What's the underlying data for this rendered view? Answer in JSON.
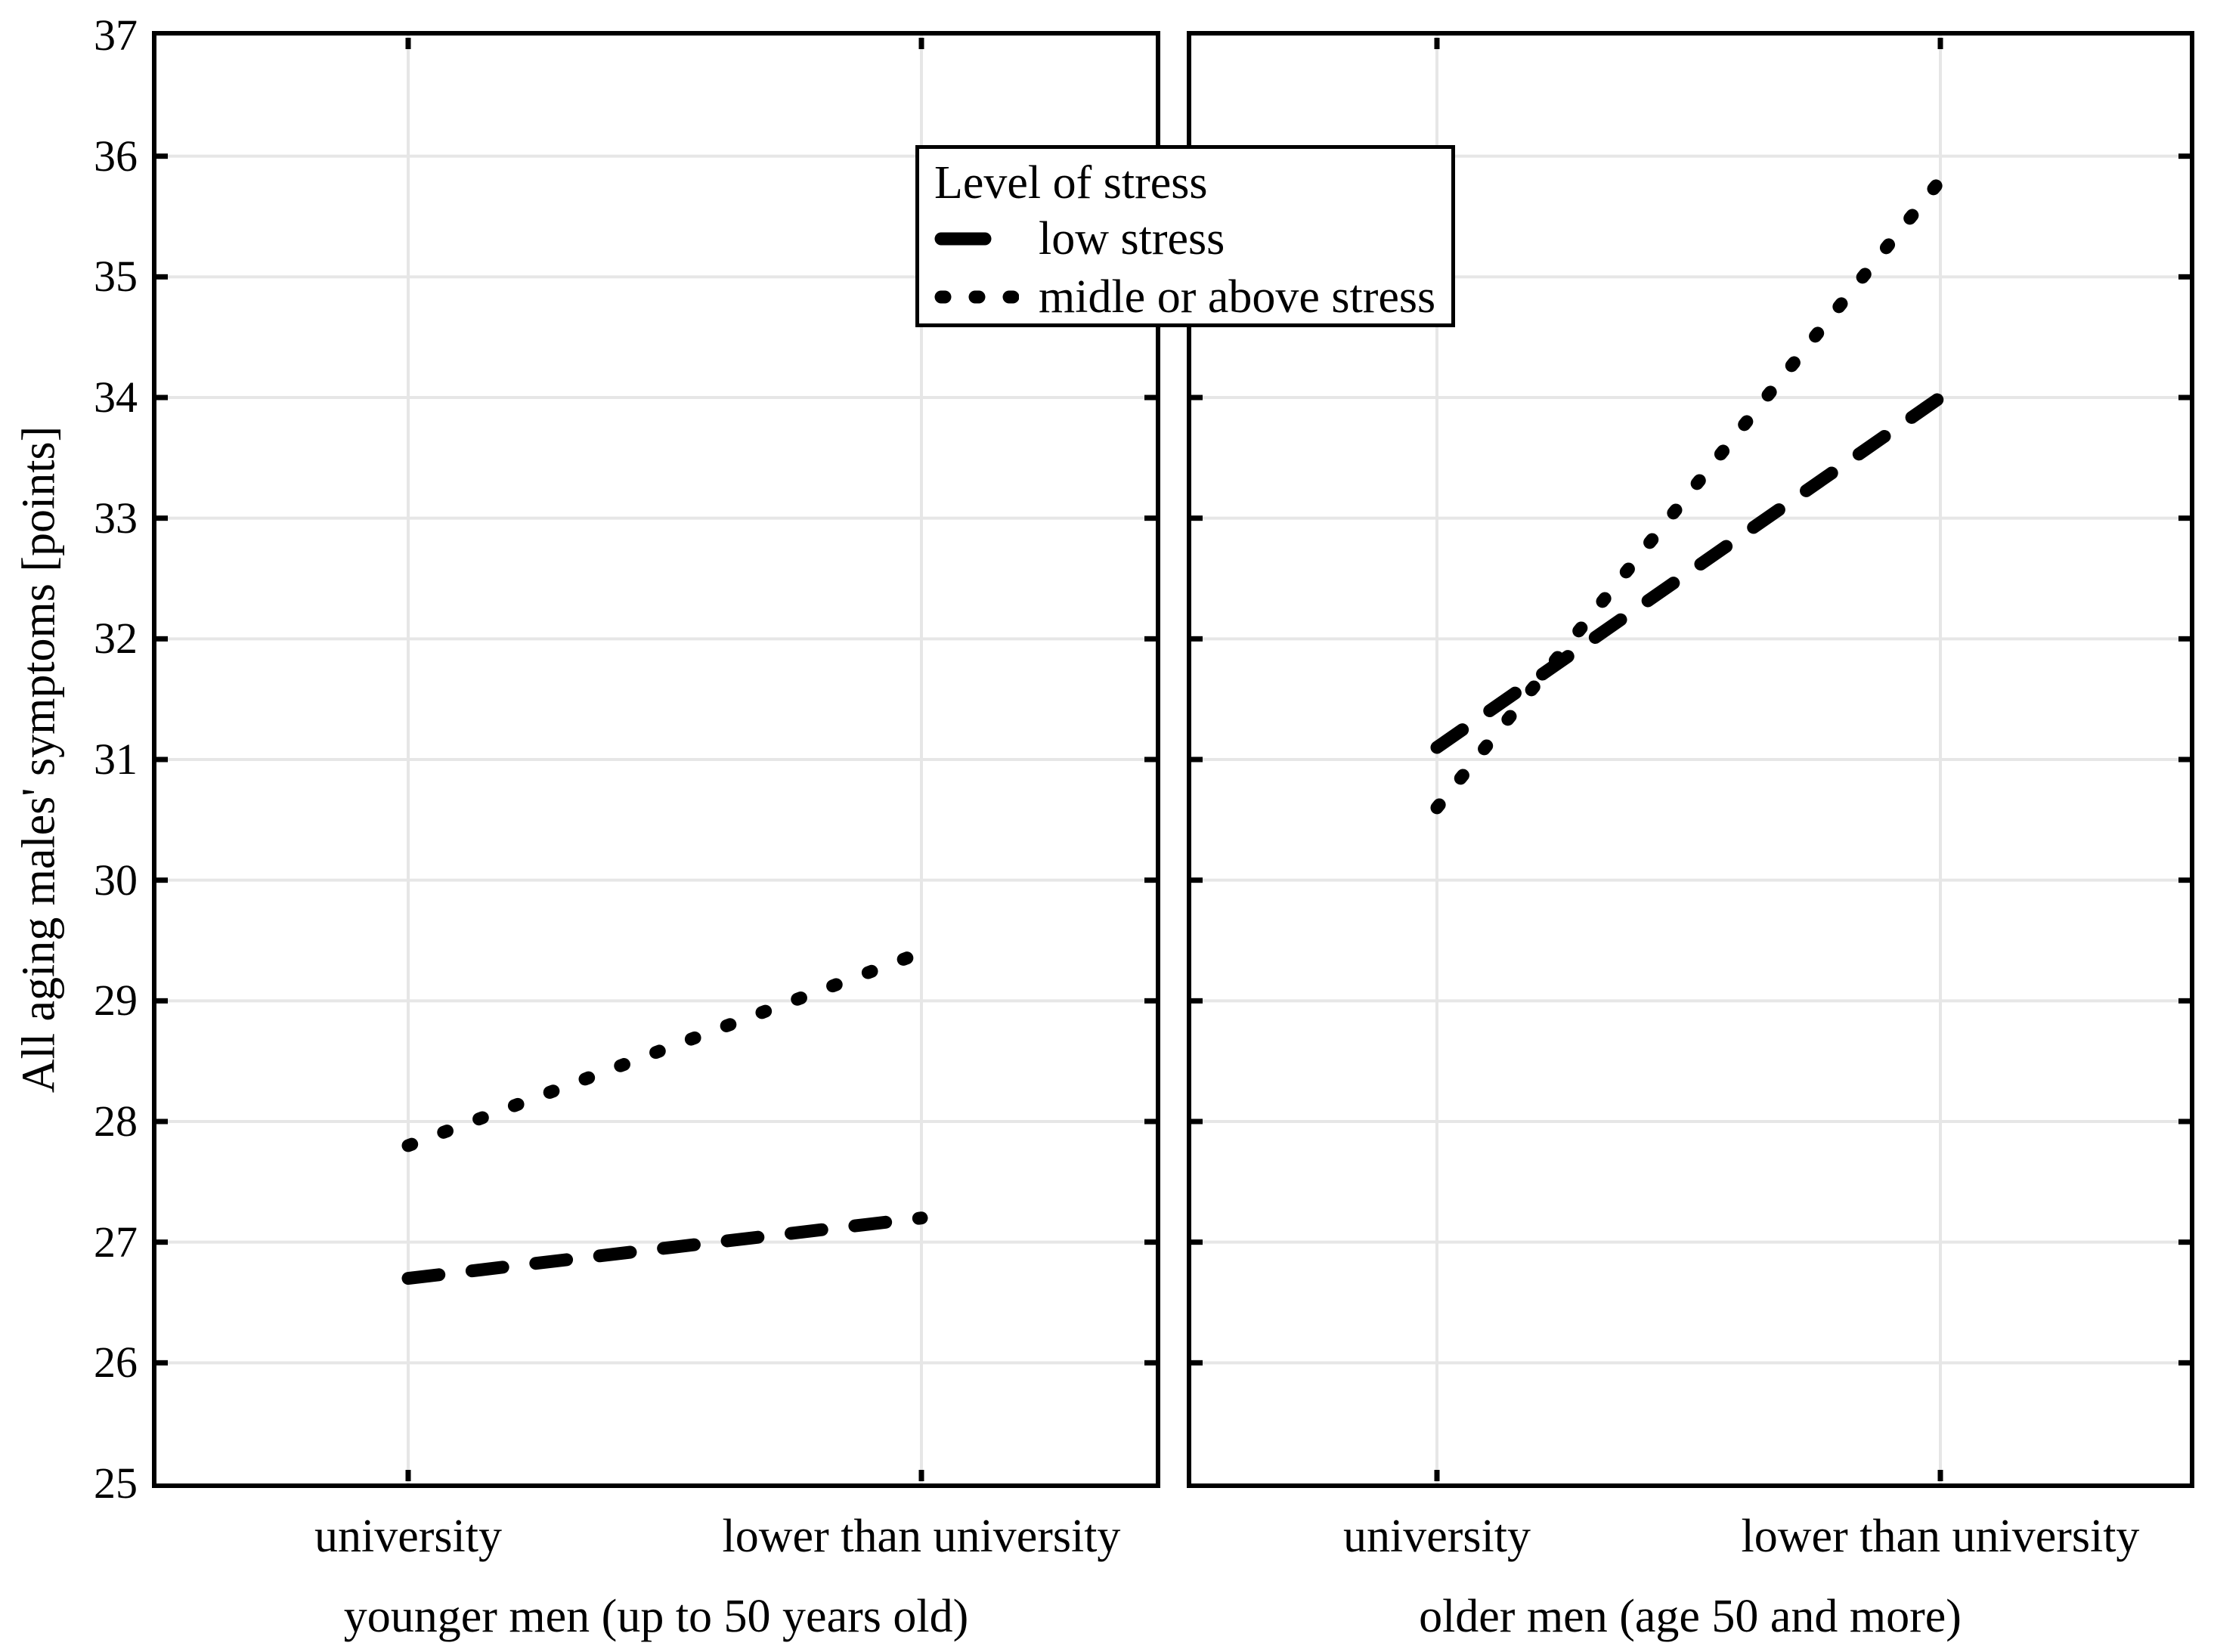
{
  "chart_data": {
    "type": "line",
    "ylabel": "All aging males' symptoms [points]",
    "ylim": [
      25,
      37
    ],
    "yticks": [
      25,
      26,
      27,
      28,
      29,
      30,
      31,
      32,
      33,
      34,
      35,
      36,
      37
    ],
    "grid": true,
    "legend": {
      "title": "Level of stress",
      "position": "top-center",
      "entries": [
        {
          "label": "low stress",
          "line_style": "dashed"
        },
        {
          "label": "midle or above stress",
          "line_style": "dotted"
        }
      ]
    },
    "panels": [
      {
        "caption": "younger men (up to 50 years old)",
        "categories": [
          "university",
          "lower than university"
        ],
        "series": [
          {
            "name": "low stress",
            "line_style": "dashed",
            "values": [
              26.7,
              27.2
            ]
          },
          {
            "name": "midle or above stress",
            "line_style": "dotted",
            "values": [
              27.8,
              29.4
            ]
          }
        ]
      },
      {
        "caption": "older men (age 50 and more)",
        "categories": [
          "university",
          "lower than university"
        ],
        "series": [
          {
            "name": "low stress",
            "line_style": "dashed",
            "values": [
              31.1,
              34.0
            ]
          },
          {
            "name": "midle or above stress",
            "line_style": "dotted",
            "values": [
              30.6,
              35.8
            ]
          }
        ]
      }
    ],
    "colors": {
      "line": "#000000",
      "grid": "#e6e6e6",
      "background": "#ffffff"
    }
  }
}
